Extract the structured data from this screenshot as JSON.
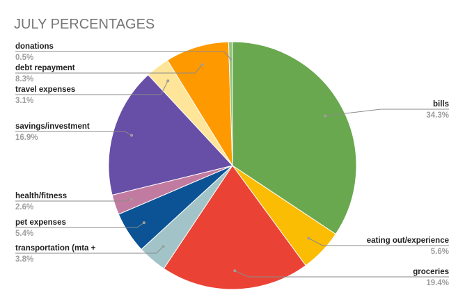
{
  "chart_data": {
    "type": "pie",
    "title": "JULY PERCENTAGES",
    "slices": [
      {
        "label": "bills",
        "value": 34.3,
        "display": "34.3%",
        "color": "#6aa84f"
      },
      {
        "label": "eating out/experience",
        "value": 5.6,
        "display": "5.6%",
        "color": "#fbbc04"
      },
      {
        "label": "groceries",
        "value": 19.4,
        "display": "19.4%",
        "color": "#ea4335"
      },
      {
        "label": "transportation (mta +",
        "value": 3.8,
        "display": "3.8%",
        "color": "#a2c4c9"
      },
      {
        "label": "pet expenses",
        "value": 5.4,
        "display": "5.4%",
        "color": "#0b5394"
      },
      {
        "label": "health/fitness",
        "value": 2.6,
        "display": "2.6%",
        "color": "#c27ba0"
      },
      {
        "label": "savings/investment",
        "value": 16.9,
        "display": "16.9%",
        "color": "#674ea7"
      },
      {
        "label": "travel expenses",
        "value": 3.1,
        "display": "3.1%",
        "color": "#ffe599"
      },
      {
        "label": "debt repayment",
        "value": 8.3,
        "display": "8.3%",
        "color": "#ff9900"
      },
      {
        "label": "donations",
        "value": 0.5,
        "display": "0.5%",
        "color": "#93c47d"
      }
    ]
  }
}
